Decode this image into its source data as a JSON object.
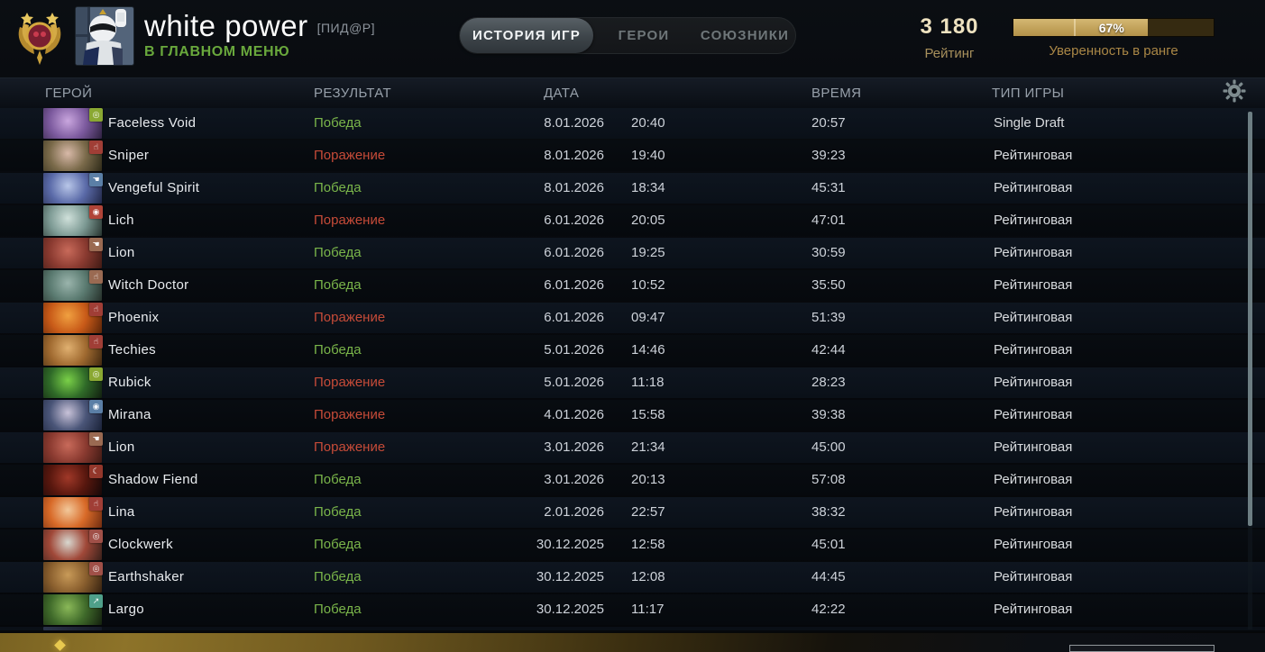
{
  "player": {
    "name": "white power",
    "tag": "[ПИД@Р]",
    "status": "В ГЛАВНОМ МЕНЮ"
  },
  "tabs": [
    {
      "label": "ИСТОРИЯ ИГР",
      "active": true
    },
    {
      "label": "ГЕРОИ",
      "active": false
    },
    {
      "label": "СОЮЗНИКИ",
      "active": false
    }
  ],
  "rating": {
    "value": "3 180",
    "label": "Рейтинг"
  },
  "confidence": {
    "percent": 67,
    "percent_label": "67%",
    "marker_percent": 30,
    "label": "Уверенность в ранге"
  },
  "colors": {
    "win": "#7ab54a",
    "loss": "#c64b38",
    "bar_fill": "#c0a058",
    "bar_empty": "#352a11"
  },
  "table": {
    "columns": {
      "hero": "ГЕРОЙ",
      "result": "РЕЗУЛЬТАТ",
      "date": "ДАТА",
      "duration": "ВРЕМЯ",
      "type": "ТИП ИГРЫ"
    },
    "rows": [
      {
        "hero": "Faceless Void",
        "result": "Победа",
        "result_type": "win",
        "date": "8.01.2026",
        "start_time": "20:40",
        "duration": "20:57",
        "type": "Single Draft",
        "portrait": {
          "c1": "#c9a6de",
          "c2": "#7c5a9e",
          "c3": "#2e2140"
        },
        "badge": {
          "bg": "#8aa832",
          "icon": "ring",
          "glyph": "◎"
        }
      },
      {
        "hero": "Sniper",
        "result": "Поражение",
        "result_type": "loss",
        "date": "8.01.2026",
        "start_time": "19:40",
        "duration": "39:23",
        "type": "Рейтинговая",
        "portrait": {
          "c1": "#d8b9a8",
          "c2": "#7a6a4a",
          "c3": "#2e2a18"
        },
        "badge": {
          "bg": "#a03e36",
          "icon": "fist",
          "glyph": "☝"
        }
      },
      {
        "hero": "Vengeful Spirit",
        "result": "Победа",
        "result_type": "win",
        "date": "8.01.2026",
        "start_time": "18:34",
        "duration": "45:31",
        "type": "Рейтинговая",
        "portrait": {
          "c1": "#b8c6e8",
          "c2": "#5a6aa8",
          "c3": "#222848"
        },
        "badge": {
          "bg": "#5b7fa6",
          "icon": "hand",
          "glyph": "☚"
        }
      },
      {
        "hero": "Lich",
        "result": "Поражение",
        "result_type": "loss",
        "date": "6.01.2026",
        "start_time": "20:05",
        "duration": "47:01",
        "type": "Рейтинговая",
        "portrait": {
          "c1": "#cfe0da",
          "c2": "#7d9a94",
          "c3": "#26332e"
        },
        "badge": {
          "bg": "#b04438",
          "icon": "eye",
          "glyph": "◉"
        }
      },
      {
        "hero": "Lion",
        "result": "Победа",
        "result_type": "win",
        "date": "6.01.2026",
        "start_time": "19:25",
        "duration": "30:59",
        "type": "Рейтинговая",
        "portrait": {
          "c1": "#c86a5a",
          "c2": "#8a3a30",
          "c3": "#401a14"
        },
        "badge": {
          "bg": "#9a6a52",
          "icon": "hand",
          "glyph": "☚"
        }
      },
      {
        "hero": "Witch Doctor",
        "result": "Победа",
        "result_type": "win",
        "date": "6.01.2026",
        "start_time": "10:52",
        "duration": "35:50",
        "type": "Рейтинговая",
        "portrait": {
          "c1": "#9ab4ac",
          "c2": "#5a7a70",
          "c3": "#26302a"
        },
        "badge": {
          "bg": "#9a6a52",
          "icon": "fist",
          "glyph": "☝"
        }
      },
      {
        "hero": "Phoenix",
        "result": "Поражение",
        "result_type": "loss",
        "date": "6.01.2026",
        "start_time": "09:47",
        "duration": "51:39",
        "type": "Рейтинговая",
        "portrait": {
          "c1": "#f0a040",
          "c2": "#c85a18",
          "c3": "#5a2408"
        },
        "badge": {
          "bg": "#a03e36",
          "icon": "fist",
          "glyph": "☝"
        }
      },
      {
        "hero": "Techies",
        "result": "Победа",
        "result_type": "win",
        "date": "5.01.2026",
        "start_time": "14:46",
        "duration": "42:44",
        "type": "Рейтинговая",
        "portrait": {
          "c1": "#e0b070",
          "c2": "#a06a30",
          "c3": "#40280f"
        },
        "badge": {
          "bg": "#a03e36",
          "icon": "fist",
          "glyph": "☝"
        }
      },
      {
        "hero": "Rubick",
        "result": "Поражение",
        "result_type": "loss",
        "date": "5.01.2026",
        "start_time": "11:18",
        "duration": "28:23",
        "type": "Рейтинговая",
        "portrait": {
          "c1": "#7ad048",
          "c2": "#2f6a28",
          "c3": "#122010"
        },
        "badge": {
          "bg": "#8aa832",
          "icon": "ring",
          "glyph": "◎"
        }
      },
      {
        "hero": "Mirana",
        "result": "Поражение",
        "result_type": "loss",
        "date": "4.01.2026",
        "start_time": "15:58",
        "duration": "39:38",
        "type": "Рейтинговая",
        "portrait": {
          "c1": "#c8c2d8",
          "c2": "#4a5578",
          "c3": "#1a2238"
        },
        "badge": {
          "bg": "#5b7fa6",
          "icon": "eye",
          "glyph": "◉"
        }
      },
      {
        "hero": "Lion",
        "result": "Поражение",
        "result_type": "loss",
        "date": "3.01.2026",
        "start_time": "21:34",
        "duration": "45:00",
        "type": "Рейтинговая",
        "portrait": {
          "c1": "#c86a5a",
          "c2": "#8a3a30",
          "c3": "#401a14"
        },
        "badge": {
          "bg": "#9a6a52",
          "icon": "hand",
          "glyph": "☚"
        }
      },
      {
        "hero": "Shadow Fiend",
        "result": "Победа",
        "result_type": "win",
        "date": "3.01.2026",
        "start_time": "20:13",
        "duration": "57:08",
        "type": "Рейтинговая",
        "portrait": {
          "c1": "#a03828",
          "c2": "#58170e",
          "c3": "#160808"
        },
        "badge": {
          "bg": "#93372b",
          "icon": "moon",
          "glyph": "☾"
        }
      },
      {
        "hero": "Lina",
        "result": "Победа",
        "result_type": "win",
        "date": "2.01.2026",
        "start_time": "22:57",
        "duration": "38:32",
        "type": "Рейтинговая",
        "portrait": {
          "c1": "#f2c89a",
          "c2": "#d86a28",
          "c3": "#702c10"
        },
        "badge": {
          "bg": "#a03e36",
          "icon": "fist",
          "glyph": "☝"
        }
      },
      {
        "hero": "Clockwerk",
        "result": "Победа",
        "result_type": "win",
        "date": "30.12.2025",
        "start_time": "12:58",
        "duration": "45:01",
        "type": "Рейтинговая",
        "portrait": {
          "c1": "#d8d8d0",
          "c2": "#a04838",
          "c3": "#38201a"
        },
        "badge": {
          "bg": "#a05048",
          "icon": "ring",
          "glyph": "◎"
        }
      },
      {
        "hero": "Earthshaker",
        "result": "Победа",
        "result_type": "win",
        "date": "30.12.2025",
        "start_time": "12:08",
        "duration": "44:45",
        "type": "Рейтинговая",
        "portrait": {
          "c1": "#c89a58",
          "c2": "#8a5f2e",
          "c3": "#362210"
        },
        "badge": {
          "bg": "#a05048",
          "icon": "ring",
          "glyph": "◎"
        }
      },
      {
        "hero": "Largo",
        "result": "Победа",
        "result_type": "win",
        "date": "30.12.2025",
        "start_time": "11:17",
        "duration": "42:22",
        "type": "Рейтинговая",
        "portrait": {
          "c1": "#8ab858",
          "c2": "#3f6a2a",
          "c3": "#14200e"
        },
        "badge": {
          "bg": "#4fa08a",
          "icon": "arrow",
          "glyph": "↗"
        }
      }
    ]
  }
}
